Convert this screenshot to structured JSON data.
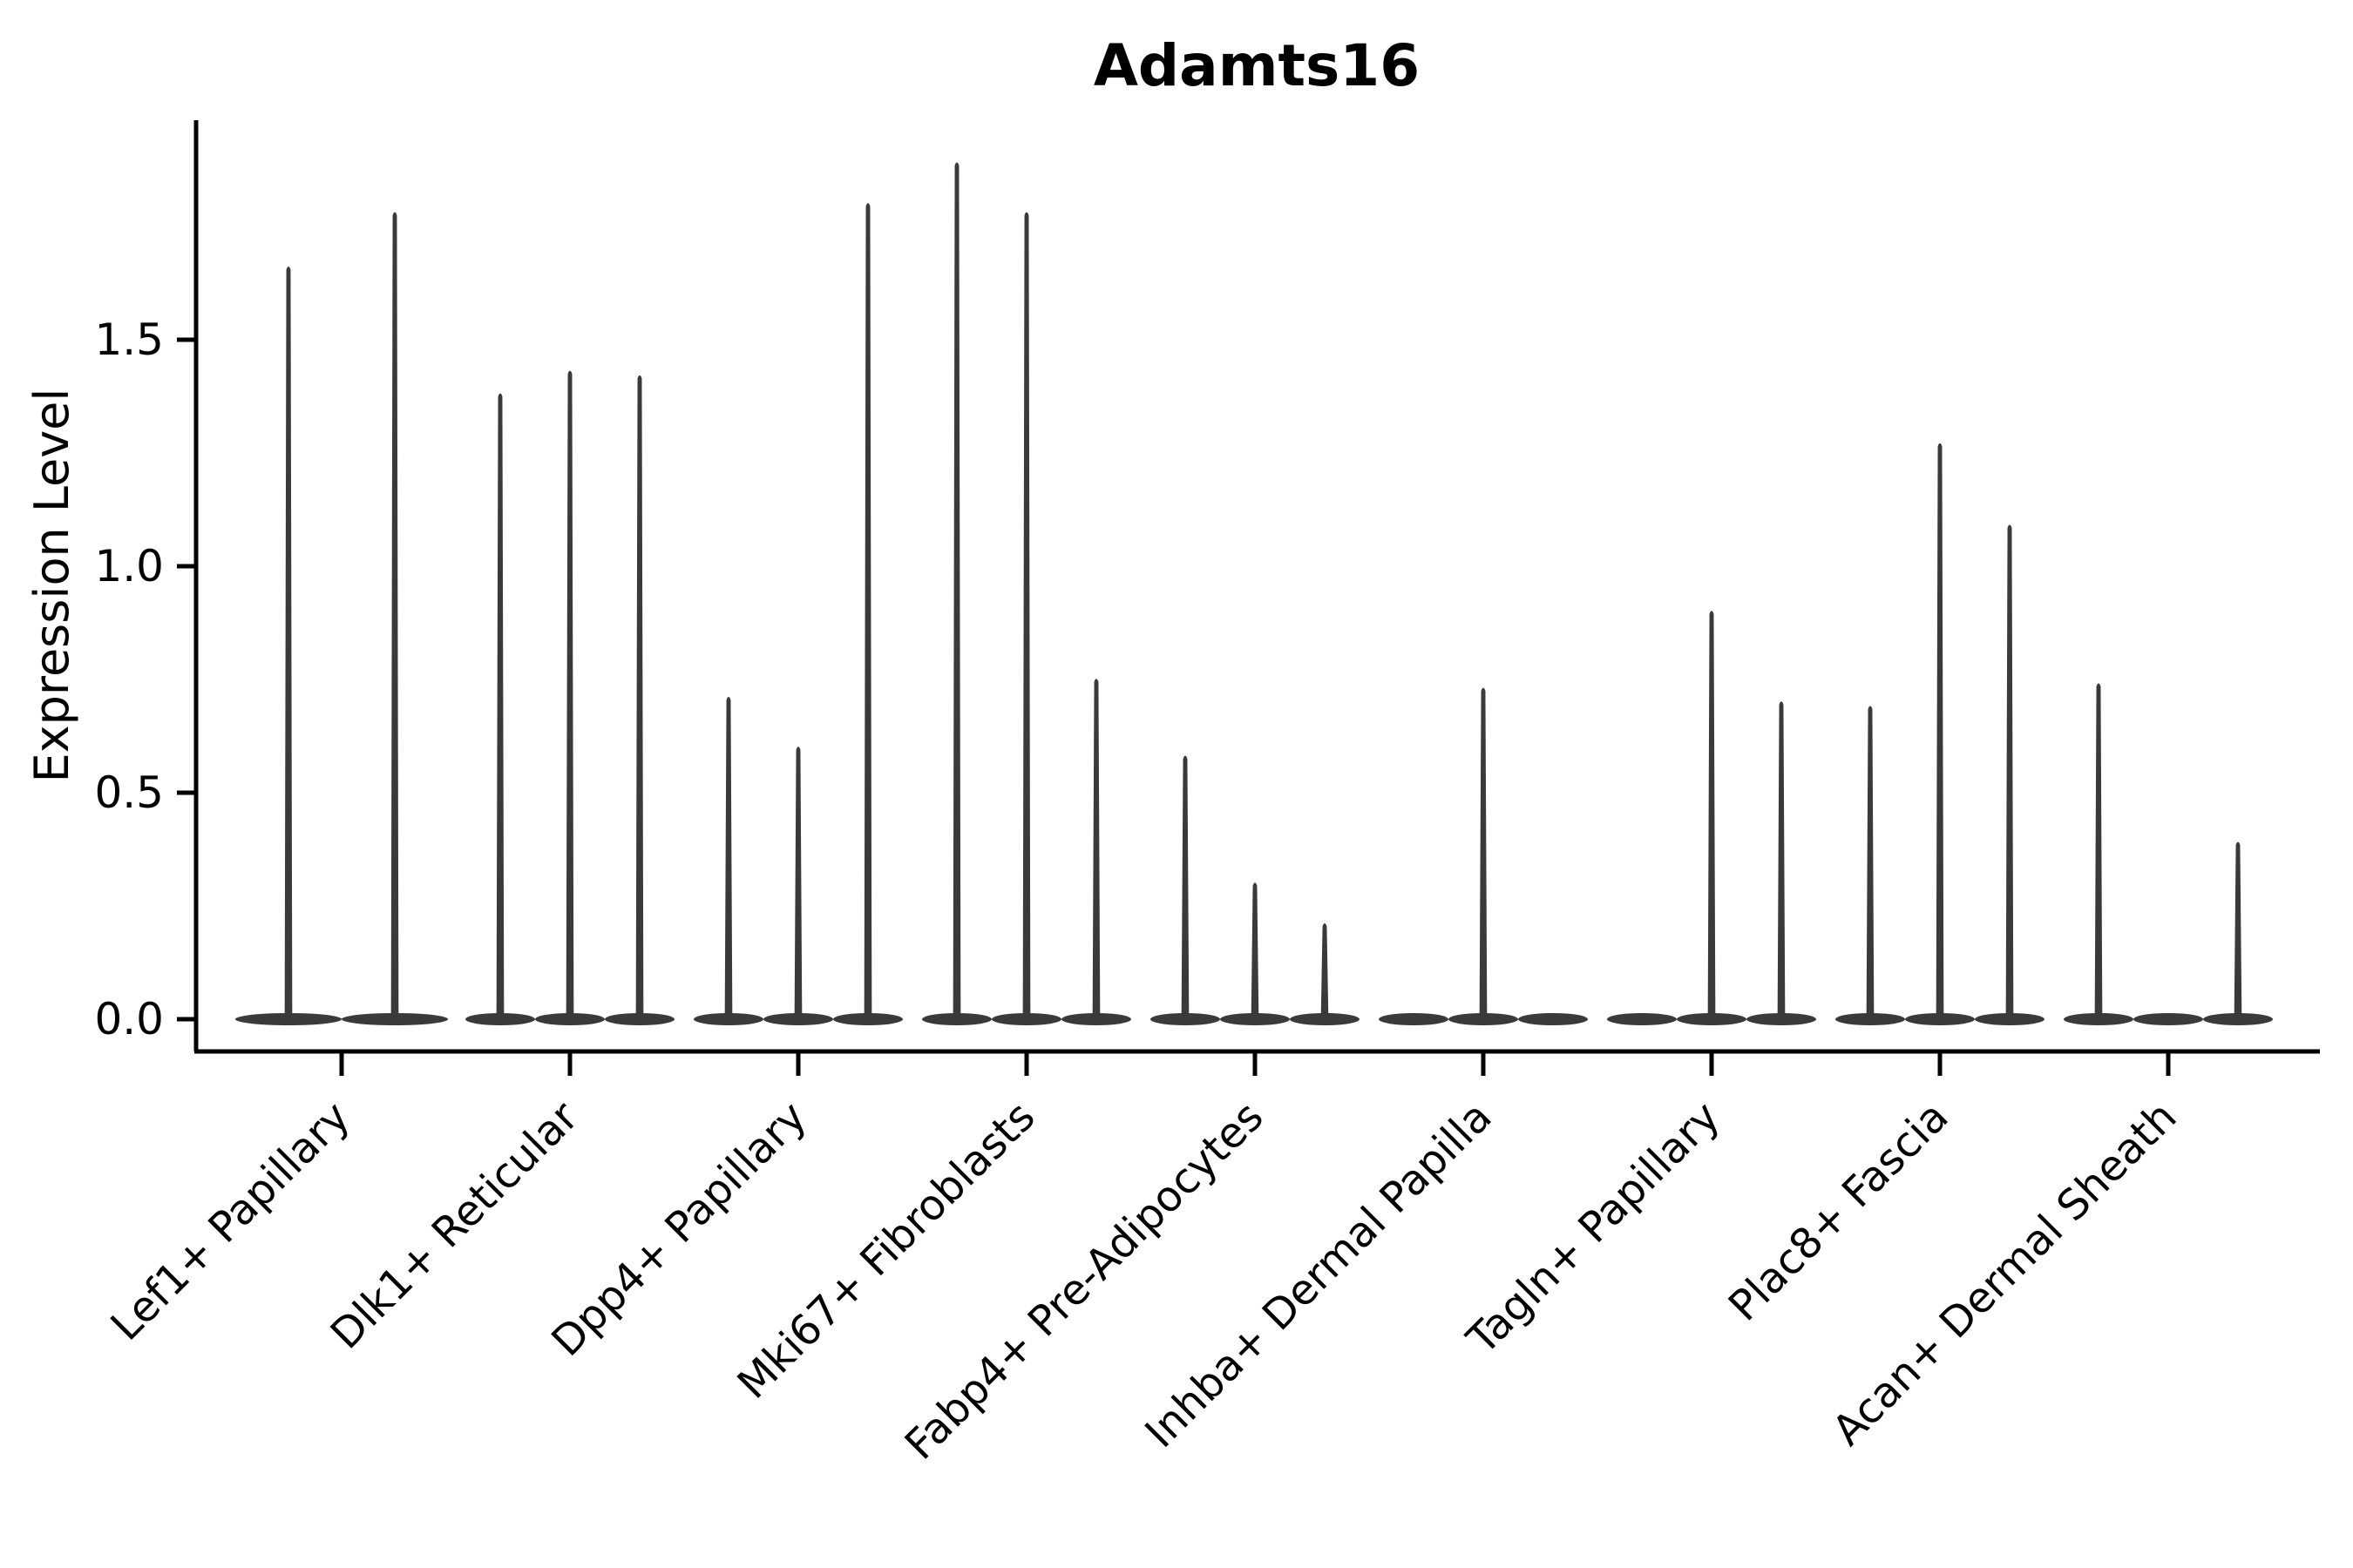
{
  "chart_data": {
    "type": "violin",
    "title": "Adamts16",
    "ylabel": "Expression Level",
    "xlabel": "",
    "ytick_labels": [
      "0.0",
      "0.5",
      "1.0",
      "1.5"
    ],
    "ytick_values": [
      0.0,
      0.5,
      1.0,
      1.5
    ],
    "ylim": [
      -0.07,
      1.99
    ],
    "grid": false,
    "legend": "none",
    "violin_color": "#3a3a3a",
    "axis_color": "#000000",
    "background_color": "#ffffff",
    "categories": [
      "Lef1+ Papillary",
      "Dlk1+ Reticular",
      "Dpp4+ Papillary",
      "Mki67+ Fibroblasts",
      "Fabp4+ Pre-Adipocytes",
      "Inhba+ Dermal Papilla",
      "Tagln+ Papillary",
      "Plac8+ Fascia",
      "Acan+ Dermal Sheath"
    ],
    "groups": [
      {
        "label": "Lef1+ Papillary",
        "violin_maxima": [
          1.66,
          1.78
        ]
      },
      {
        "label": "Dlk1+ Reticular",
        "violin_maxima": [
          1.38,
          1.43,
          1.42
        ]
      },
      {
        "label": "Dpp4+ Papillary",
        "violin_maxima": [
          0.71,
          0.6,
          1.8
        ]
      },
      {
        "label": "Mki67+ Fibroblasts",
        "violin_maxima": [
          1.89,
          1.78,
          0.75
        ]
      },
      {
        "label": "Fabp4+ Pre-Adipocytes",
        "violin_maxima": [
          0.58,
          0.3,
          0.21
        ]
      },
      {
        "label": "Inhba+ Dermal Papilla",
        "violin_maxima": [
          0.0,
          0.73,
          0.0
        ]
      },
      {
        "label": "Tagln+ Papillary",
        "violin_maxima": [
          0.0,
          0.9,
          0.7
        ]
      },
      {
        "label": "Plac8+ Fascia",
        "violin_maxima": [
          0.69,
          1.27,
          1.09
        ]
      },
      {
        "label": "Acan+ Dermal Sheath",
        "violin_maxima": [
          0.74,
          0.0,
          0.39
        ]
      }
    ],
    "description": "Violin plot of Adamts16 expression; most cells at 0 with thin density spikes up to per-sample maxima"
  }
}
